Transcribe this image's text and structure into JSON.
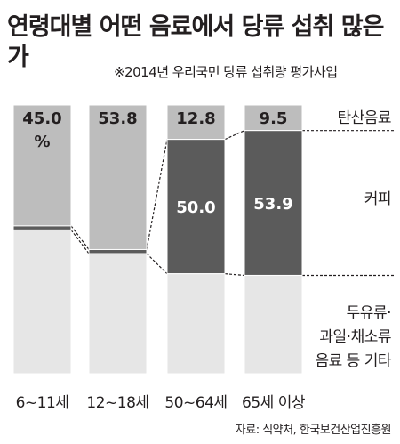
{
  "title": "연령대별 어떤 음료에서 당류 섭취 많은가",
  "subtitle": "※2014년 우리국민 당류 섭취량 평가사업",
  "source": "자료: 식약처, 한국보건산업진흥원",
  "colors": {
    "soda": "#bdbdbd",
    "coffee": "#5b5b5b",
    "other": "#e6e6e6",
    "page": "#ffffff"
  },
  "chart_data": {
    "type": "bar",
    "stacked": true,
    "percent": true,
    "categories": [
      "6~11세",
      "12~18세",
      "50~64세",
      "65세 이상"
    ],
    "series": [
      {
        "name": "탄산음료",
        "values": [
          45.0,
          53.8,
          12.8,
          9.5
        ],
        "labels": [
          "45.0 %",
          "53.8",
          "12.8",
          "9.5"
        ]
      },
      {
        "name": "커피",
        "values": [
          1.5,
          1.5,
          50.0,
          53.9
        ],
        "labels": [
          "",
          "",
          "50.0",
          "53.9"
        ]
      },
      {
        "name": "두유류·과일·채소류 음료 등 기타",
        "values": [
          53.5,
          44.7,
          37.2,
          36.6
        ],
        "labels": [
          "",
          "",
          "",
          ""
        ]
      }
    ],
    "ylim": [
      0,
      100
    ],
    "legend_position": "right"
  }
}
